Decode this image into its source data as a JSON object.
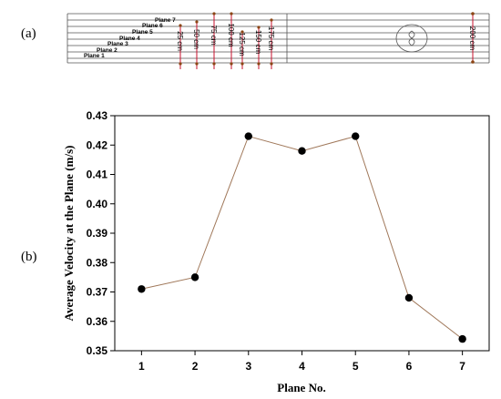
{
  "panels": {
    "a": "(a)",
    "b": "(b)"
  },
  "schematic": {
    "planes": [
      "Plane 1",
      "Plane 2",
      "Plane 3",
      "Plane 4",
      "Plane 5",
      "Plane 6",
      "Plane 7"
    ],
    "distances": [
      "25 cm",
      "50 cm",
      "75 cm",
      "100 cm",
      "125 cm",
      "150 cm",
      "175 cm"
    ],
    "total_length": "200 cm"
  },
  "chart_data": {
    "type": "line",
    "x": [
      1,
      2,
      3,
      4,
      5,
      6,
      7
    ],
    "values": [
      0.371,
      0.375,
      0.423,
      0.418,
      0.423,
      0.368,
      0.354
    ],
    "xlabel": "Plane No.",
    "ylabel": "Average Velocity at the Plane (m/s)",
    "ylim": [
      0.35,
      0.43
    ],
    "yticks": [
      "0.35",
      "0.36",
      "0.37",
      "0.38",
      "0.39",
      "0.40",
      "0.41",
      "0.42",
      "0.43"
    ],
    "xticks": [
      "1",
      "2",
      "3",
      "4",
      "5",
      "6",
      "7"
    ],
    "grid": false,
    "line_color": "#a0785a",
    "marker_color": "#000000"
  }
}
